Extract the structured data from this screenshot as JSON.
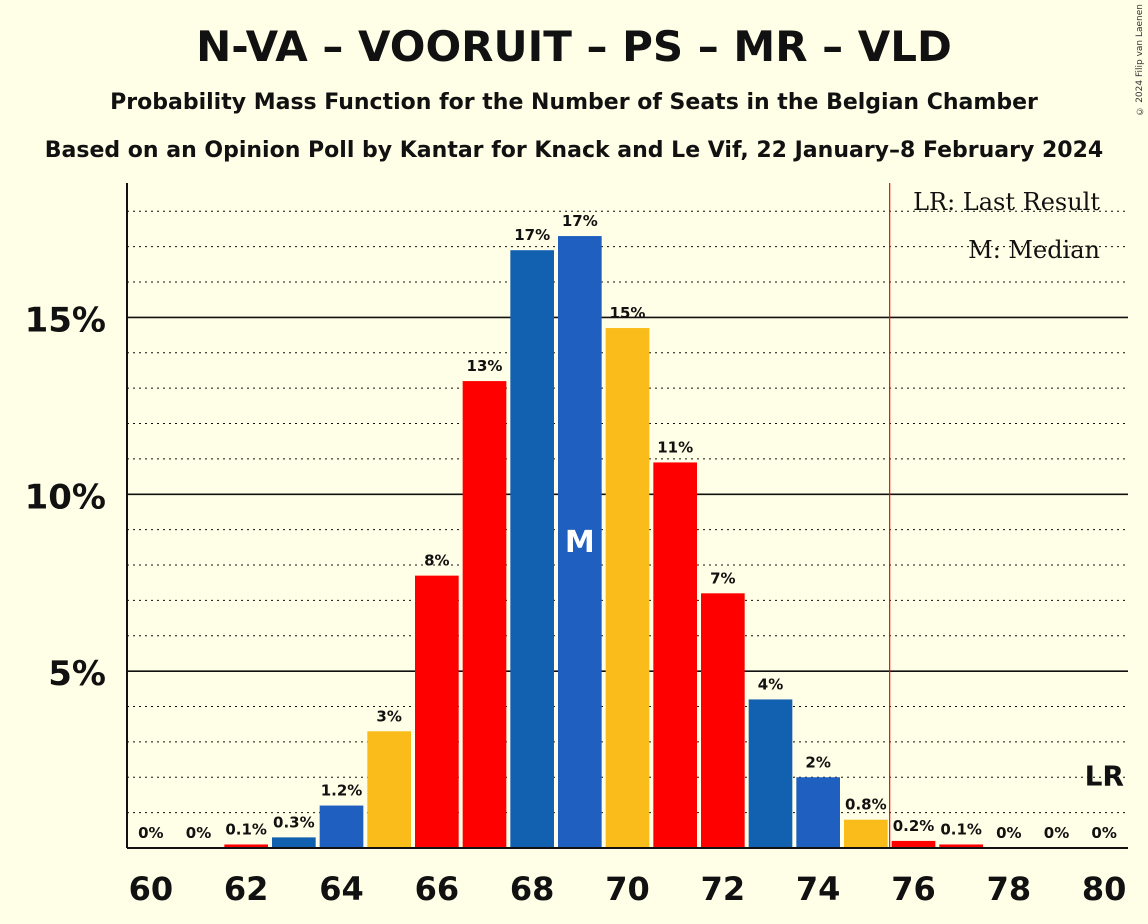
{
  "title": "N-VA – VOORUIT – PS – MR – VLD",
  "subtitle": "Probability Mass Function for the Number of Seats in the Belgian Chamber",
  "subtitle2": "Based on an Opinion Poll by Kantar for Knack and Le Vif, 22 January–8 February 2024",
  "copyright": "© 2024 Filip van Laenen",
  "legend": {
    "last_result": "LR: Last Result",
    "median": "M: Median"
  },
  "markers": {
    "median_label": "M",
    "median_seat": 69,
    "last_result_label": "LR",
    "last_result_seat": 76
  },
  "colors": {
    "red": "#FF0000",
    "blue": "#1260B0",
    "blue2": "#1F5FBF",
    "yellow": "#F9BC1B",
    "background": "#FFFEE6"
  },
  "chart_data": {
    "type": "bar",
    "title": "N-VA – VOORUIT – PS – MR – VLD",
    "xlabel": "",
    "ylabel": "",
    "x": [
      60,
      61,
      62,
      63,
      64,
      65,
      66,
      67,
      68,
      69,
      70,
      71,
      72,
      73,
      74,
      75,
      76,
      77,
      78,
      79,
      80
    ],
    "values": [
      0,
      0,
      0.1,
      0.3,
      1.2,
      3.3,
      7.7,
      13.2,
      16.9,
      17.3,
      14.7,
      10.9,
      7.2,
      4.2,
      2.0,
      0.8,
      0.2,
      0.1,
      0,
      0,
      0
    ],
    "labels": [
      "0%",
      "0%",
      "0.1%",
      "0.3%",
      "1.2%",
      "3%",
      "8%",
      "13%",
      "17%",
      "17%",
      "15%",
      "11%",
      "7%",
      "4%",
      "2%",
      "0.8%",
      "0.2%",
      "0.1%",
      "0%",
      "0%",
      "0%"
    ],
    "bar_colors": [
      "red",
      "red",
      "red",
      "blue",
      "blue2",
      "yellow",
      "red",
      "red",
      "blue",
      "blue2",
      "yellow",
      "red",
      "red",
      "blue",
      "blue2",
      "yellow",
      "red",
      "red",
      "red",
      "red",
      "red"
    ],
    "x_tick_labels": [
      "60",
      "62",
      "64",
      "66",
      "68",
      "70",
      "72",
      "74",
      "76",
      "78",
      "80"
    ],
    "y_ticks": [
      {
        "value": 5,
        "label": "5%"
      },
      {
        "value": 10,
        "label": "10%"
      },
      {
        "value": 15,
        "label": "15%"
      }
    ],
    "ylim": [
      0,
      18.8
    ],
    "grid": "dotted every 1%, solid every 5%"
  }
}
